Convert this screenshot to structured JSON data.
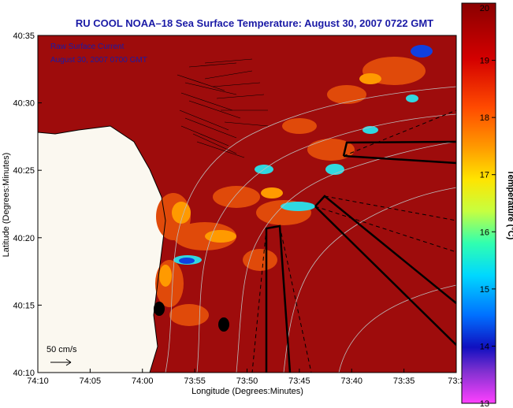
{
  "title": "RU COOL  NOAA–18  Sea Surface Temperature:  August 30, 2007 0722 GMT",
  "inset": {
    "line1": "Raw Surface Current",
    "line2": "August 30, 2007 0700 GMT"
  },
  "scale_label": "50 cm/s",
  "xlabel": "Longitude (Degrees:Minutes)",
  "ylabel": "Latitude (Degrees:Minutes)",
  "colorbar": {
    "label": "Temperature (°C)",
    "min": 13,
    "max": 20,
    "ticks": [
      "20",
      "19",
      "18",
      "17",
      "16",
      "15",
      "14",
      "13"
    ]
  },
  "x_ticks": [
    "74:10",
    "74:05",
    "74:00",
    "73:55",
    "73:50",
    "73:45",
    "73:40",
    "73:35",
    "73:3"
  ],
  "y_ticks": [
    "40:35",
    "40:30",
    "40:25",
    "40:20",
    "40:15",
    "40:10"
  ],
  "colors": {
    "title": "#1a1aa6",
    "land": "#fbf8f0",
    "sst_warm": "#9e0c0c"
  }
}
